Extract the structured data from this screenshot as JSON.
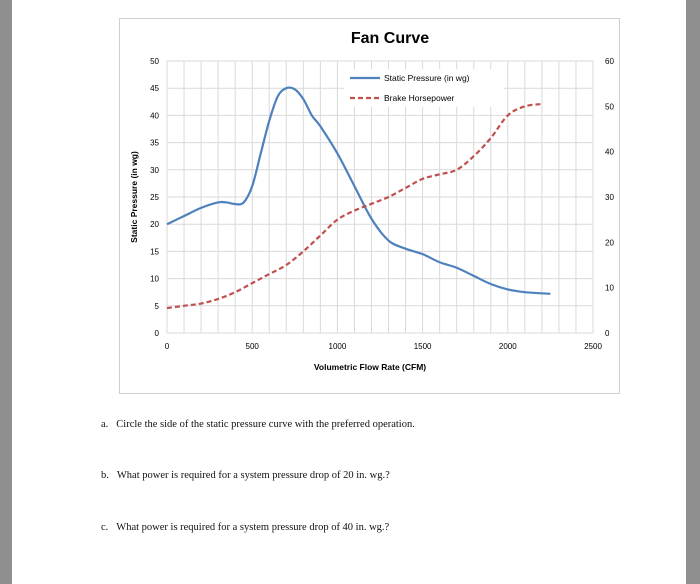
{
  "colors": {
    "static_pressure": "#4f81bd",
    "brake_horsepower": "#c0504d",
    "gridline": "#d9d9d9"
  },
  "chart_data": {
    "type": "line",
    "title": "Fan Curve",
    "xlabel": "Volumetric Flow Rate (CFM)",
    "ylabel": "Static Pressure (in wg)",
    "y2label": "Brake Horsepower",
    "xlim": [
      0,
      2500
    ],
    "ylim": [
      0,
      50
    ],
    "y2lim": [
      0,
      60
    ],
    "xticks": [
      "0",
      "500",
      "1000",
      "1500",
      "2000",
      "2500"
    ],
    "yticks": [
      "0",
      "5",
      "10",
      "15",
      "20",
      "25",
      "30",
      "35",
      "40",
      "45",
      "50"
    ],
    "y2ticks": [
      "0",
      "10",
      "20",
      "30",
      "40",
      "50",
      "60"
    ],
    "grid": true,
    "legend_position": "top-right",
    "series": [
      {
        "name": "Static Pressure (in wg)",
        "axis": "left",
        "style": "solid",
        "x": [
          0,
          100,
          200,
          300,
          350,
          400,
          450,
          500,
          550,
          600,
          650,
          700,
          750,
          800,
          850,
          900,
          1000,
          1100,
          1200,
          1300,
          1400,
          1500,
          1600,
          1700,
          1800,
          1900,
          2000,
          2100,
          2200,
          2250
        ],
        "y": [
          20,
          21.5,
          23,
          24,
          24,
          23.7,
          24,
          27,
          33,
          39,
          43.5,
          45,
          44.8,
          43,
          40,
          38,
          33,
          27,
          21,
          17,
          15.5,
          14.5,
          13,
          12,
          10.5,
          9,
          8,
          7.5,
          7.3,
          7.2
        ]
      },
      {
        "name": "Brake Horsepower",
        "axis": "right",
        "style": "dashed",
        "x": [
          0,
          100,
          200,
          300,
          400,
          500,
          600,
          700,
          800,
          900,
          1000,
          1100,
          1200,
          1300,
          1400,
          1500,
          1600,
          1700,
          1800,
          1900,
          2000,
          2100,
          2200
        ],
        "y": [
          5.5,
          6,
          6.5,
          7.5,
          9,
          11,
          13,
          15,
          18,
          21.5,
          25,
          27,
          28.5,
          30,
          32,
          34,
          35,
          36,
          39,
          43,
          48,
          50,
          50.5
        ]
      }
    ]
  },
  "questions": [
    {
      "letter": "a.",
      "text": "Circle the side of the static pressure curve with the preferred operation."
    },
    {
      "letter": "b.",
      "text": "What power is required for a system pressure drop of 20 in. wg.?"
    },
    {
      "letter": "c.",
      "text": "What power is required for a system pressure drop of 40 in. wg.?"
    }
  ]
}
